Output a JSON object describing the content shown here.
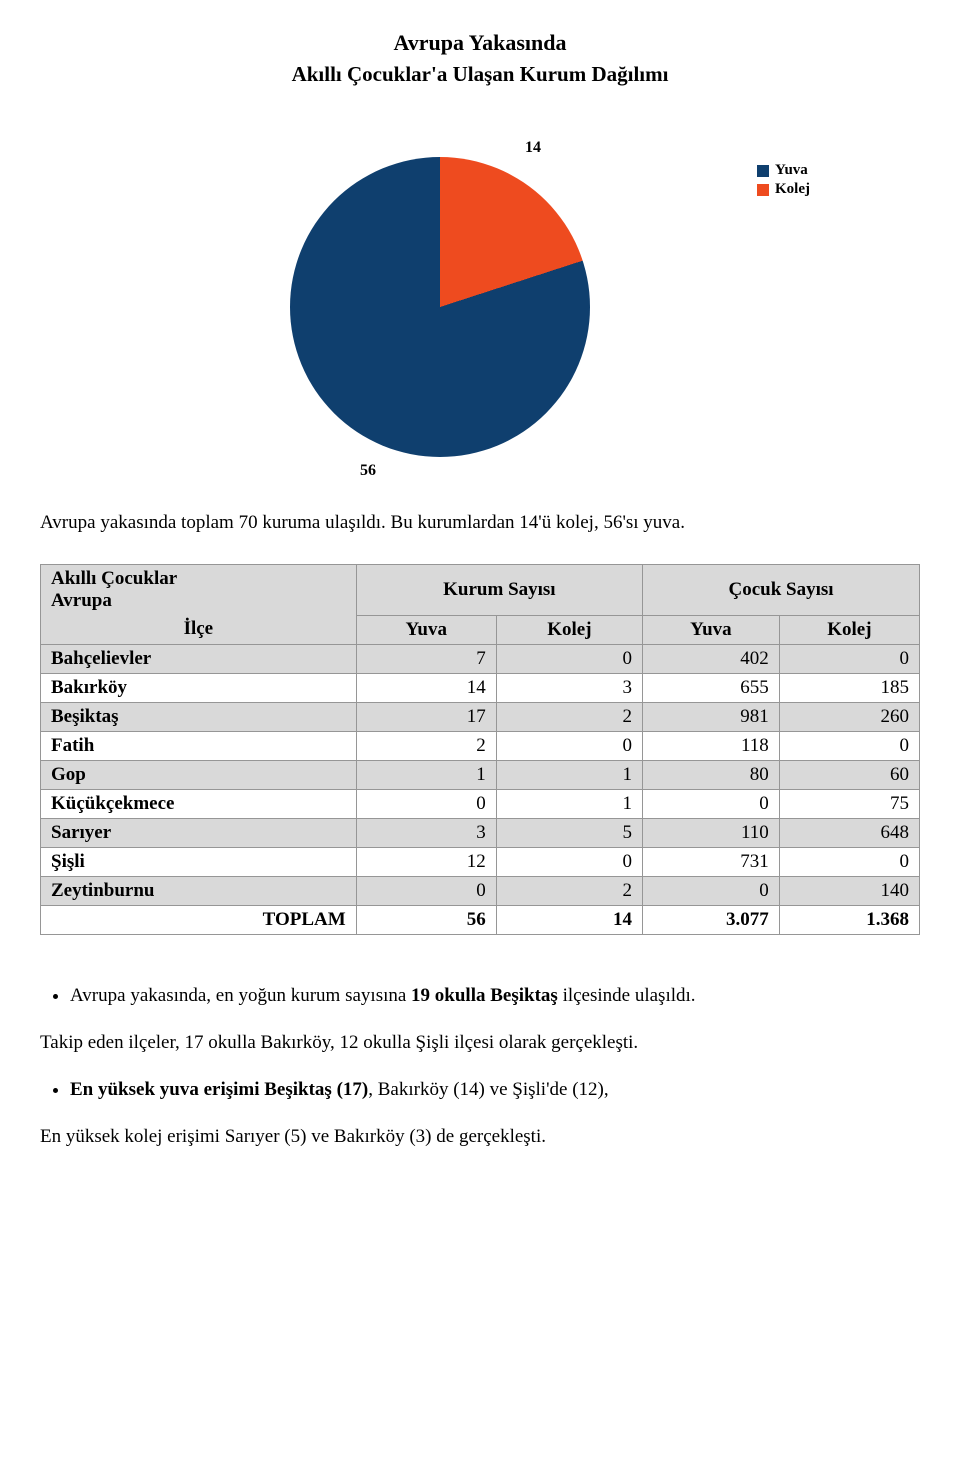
{
  "header": {
    "title": "Avrupa Yakasında",
    "subtitle": "Akıllı Çocuklar'a Ulaşan Kurum Dağılımı",
    "title_fontsize": 22,
    "subtitle_fontsize": 21
  },
  "pie_chart": {
    "type": "pie",
    "slices": [
      {
        "label": "Kolej",
        "value": 14,
        "color": "#ee4b1f"
      },
      {
        "label": "Yuva",
        "value": 56,
        "color": "#0f3f6e"
      }
    ],
    "value_label_14": "14",
    "value_label_56": "56",
    "label_fontsize": 16,
    "background_color": "#ffffff",
    "legend": {
      "items": [
        {
          "name": "Yuva",
          "swatch_color": "#0f3f6e"
        },
        {
          "name": "Kolej",
          "swatch_color": "#ee4b1f"
        }
      ]
    }
  },
  "note_text": "Avrupa yakasında toplam 70 kuruma ulaşıldı. Bu kurumlardan 14'ü kolej, 56'sı yuva.",
  "table": {
    "header_block": {
      "line1": "Akıllı Çocuklar",
      "line2": "Avrupa"
    },
    "group_headers": {
      "kurum": "Kurum Sayısı",
      "cocuk": "Çocuk Sayısı"
    },
    "ilce_label": "İlçe",
    "sub_headers": [
      "Yuva",
      "Kolej",
      "Yuva",
      "Kolej"
    ],
    "rows": [
      {
        "name": "Bahçelievler",
        "vals": [
          "7",
          "0",
          "402",
          "0"
        ],
        "shade": "#d9d9d9"
      },
      {
        "name": "Bakırköy",
        "vals": [
          "14",
          "3",
          "655",
          "185"
        ],
        "shade": "#ffffff"
      },
      {
        "name": "Beşiktaş",
        "vals": [
          "17",
          "2",
          "981",
          "260"
        ],
        "shade": "#d9d9d9"
      },
      {
        "name": "Fatih",
        "vals": [
          "2",
          "0",
          "118",
          "0"
        ],
        "shade": "#ffffff"
      },
      {
        "name": "Gop",
        "vals": [
          "1",
          "1",
          "80",
          "60"
        ],
        "shade": "#d9d9d9"
      },
      {
        "name": "Küçükçekmece",
        "vals": [
          "0",
          "1",
          "0",
          "75"
        ],
        "shade": "#ffffff"
      },
      {
        "name": "Sarıyer",
        "vals": [
          "3",
          "5",
          "110",
          "648"
        ],
        "shade": "#d9d9d9"
      },
      {
        "name": "Şişli",
        "vals": [
          "12",
          "0",
          "731",
          "0"
        ],
        "shade": "#ffffff"
      },
      {
        "name": "Zeytinburnu",
        "vals": [
          "0",
          "2",
          "0",
          "140"
        ],
        "shade": "#d9d9d9"
      }
    ],
    "total_label": "TOPLAM",
    "total_vals": [
      "56",
      "14",
      "3.077",
      "1.368"
    ],
    "border_color": "#969696",
    "header_row_bg": "#d9d9d9"
  },
  "bullets": {
    "item1_pre": "Avrupa yakasında, en yoğun kurum sayısına ",
    "item1_bold": "19 okulla Beşiktaş",
    "item1_post": " ilçesinde ulaşıldı.",
    "follow1": "Takip eden ilçeler, 17 okulla Bakırköy,  12 okulla Şişli ilçesi olarak gerçekleşti.",
    "item2_bold": "En yüksek yuva erişimi Beşiktaş (17)",
    "item2_post": ", Bakırköy (14) ve Şişli'de (12),",
    "follow2": "En yüksek kolej erişimi Sarıyer (5) ve Bakırköy (3) de gerçekleşti."
  }
}
